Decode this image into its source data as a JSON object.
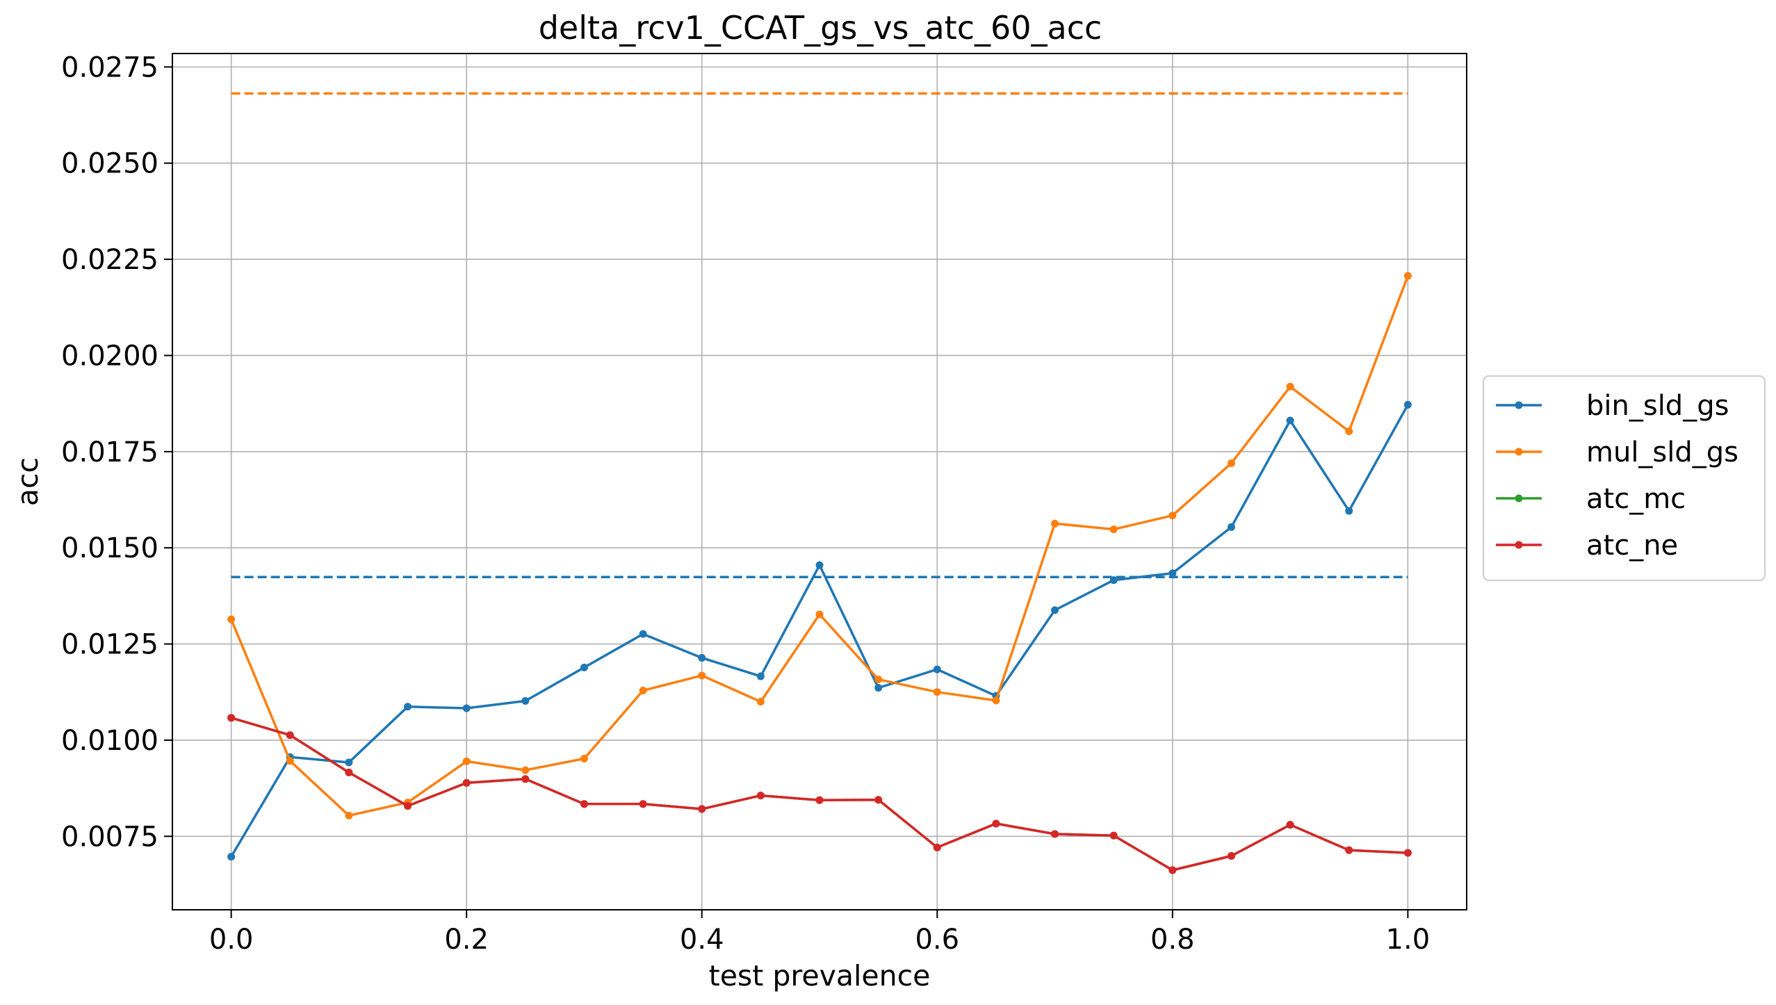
{
  "chart_data": {
    "type": "line",
    "title": "delta_rcv1_CCAT_gs_vs_atc_60_acc",
    "xlabel": "test prevalence",
    "ylabel": "acc",
    "xlim": [
      -0.05,
      1.05
    ],
    "ylim": [
      0.00559,
      0.02785
    ],
    "x_ticks": [
      0.0,
      0.2,
      0.4,
      0.6,
      0.8,
      1.0
    ],
    "x_tick_labels": [
      "0.0",
      "0.2",
      "0.4",
      "0.6",
      "0.8",
      "1.0"
    ],
    "y_ticks": [
      0.0075,
      0.01,
      0.0125,
      0.015,
      0.0175,
      0.02,
      0.0225,
      0.025,
      0.0275
    ],
    "y_tick_labels": [
      "0.0075",
      "0.0100",
      "0.0125",
      "0.0150",
      "0.0175",
      "0.0200",
      "0.0225",
      "0.0250",
      "0.0275"
    ],
    "grid": true,
    "legend_position": "outside-right",
    "x": [
      0.0,
      0.05,
      0.1,
      0.15,
      0.2,
      0.25,
      0.3,
      0.35,
      0.4,
      0.45,
      0.5,
      0.55,
      0.6,
      0.65,
      0.7,
      0.75,
      0.8,
      0.85,
      0.9,
      0.95,
      1.0
    ],
    "series": [
      {
        "name": "bin_sld_gs",
        "color": "#1f77b4",
        "values": [
          0.00697,
          0.00956,
          0.00942,
          0.01087,
          0.01083,
          0.01102,
          0.01189,
          0.01276,
          0.01214,
          0.01166,
          0.01455,
          0.01136,
          0.01184,
          0.01115,
          0.01338,
          0.01416,
          0.01434,
          0.01554,
          0.01831,
          0.01596,
          0.01872
        ]
      },
      {
        "name": "mul_sld_gs",
        "color": "#ff7f0e",
        "values": [
          0.01314,
          0.00946,
          0.00804,
          0.00838,
          0.00945,
          0.00922,
          0.00952,
          0.01129,
          0.01168,
          0.011,
          0.01327,
          0.01158,
          0.01125,
          0.01103,
          0.01563,
          0.01548,
          0.01584,
          0.0172,
          0.01919,
          0.01803,
          0.02207
        ]
      },
      {
        "name": "atc_mc",
        "color": "#2ca02c",
        "values": [
          0.01058,
          0.01013,
          0.00916,
          0.00829,
          0.00889,
          0.00899,
          0.00834,
          0.00834,
          0.00821,
          0.00856,
          0.00844,
          0.00845,
          0.00721,
          0.00783,
          0.00756,
          0.00752,
          0.00662,
          0.00699,
          0.0078,
          0.00714,
          0.00707
        ]
      },
      {
        "name": "atc_ne",
        "color": "#d62728",
        "values": [
          0.01058,
          0.01013,
          0.00916,
          0.00829,
          0.00889,
          0.00899,
          0.00834,
          0.00834,
          0.00821,
          0.00856,
          0.00844,
          0.00845,
          0.00721,
          0.00783,
          0.00756,
          0.00752,
          0.00662,
          0.00699,
          0.0078,
          0.00714,
          0.00707
        ]
      }
    ],
    "reference_lines": [
      {
        "color": "#1f77b4",
        "style": "dashed",
        "value": 0.01424,
        "x_range": [
          0.0,
          1.0
        ]
      },
      {
        "color": "#ff7f0e",
        "style": "dashed",
        "value": 0.02681,
        "x_range": [
          0.0,
          1.0
        ]
      }
    ]
  }
}
